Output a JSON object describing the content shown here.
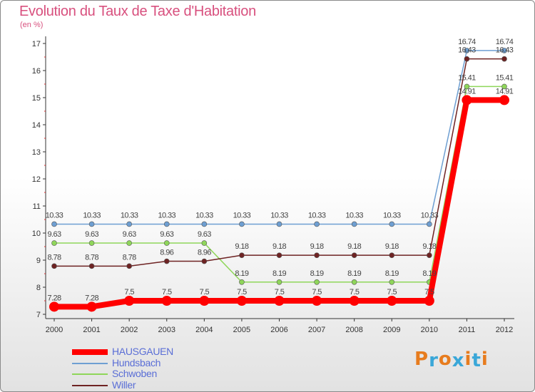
{
  "chart_data": {
    "type": "line",
    "title": "Evolution du Taux de Taxe d'Habitation",
    "subtitle": "(en %)",
    "xlabel": "",
    "ylabel": "",
    "categories": [
      "2000",
      "2001",
      "2002",
      "2003",
      "2004",
      "2005",
      "2006",
      "2007",
      "2008",
      "2009",
      "2010",
      "2011",
      "2012"
    ],
    "ylim": [
      7,
      17
    ],
    "yticks": [
      "7",
      "8",
      "9",
      "10",
      "11",
      "12",
      "13",
      "14",
      "15",
      "16",
      "17"
    ],
    "series": [
      {
        "name": "HAUSGAUEN",
        "color": "#ff0000",
        "values": [
          7.28,
          7.28,
          7.5,
          7.5,
          7.5,
          7.5,
          7.5,
          7.5,
          7.5,
          7.5,
          7.5,
          14.91,
          14.91
        ],
        "labels": [
          "7.28",
          "7.28",
          "7.5",
          "7.5",
          "7.5",
          "7.5",
          "7.5",
          "7.5",
          "7.5",
          "7.5",
          "7.5",
          "14.91",
          "14.91"
        ]
      },
      {
        "name": "Hundsbach",
        "color": "#6e9fd2",
        "values": [
          10.33,
          10.33,
          10.33,
          10.33,
          10.33,
          10.33,
          10.33,
          10.33,
          10.33,
          10.33,
          10.33,
          16.74,
          16.74
        ],
        "labels": [
          "10.33",
          "10.33",
          "10.33",
          "10.33",
          "10.33",
          "10.33",
          "10.33",
          "10.33",
          "10.33",
          "10.33",
          "10.33",
          "16.74",
          "16.74"
        ]
      },
      {
        "name": "Schwoben",
        "color": "#8fd65a",
        "values": [
          9.63,
          9.63,
          9.63,
          9.63,
          9.63,
          8.19,
          8.19,
          8.19,
          8.19,
          8.19,
          8.19,
          15.41,
          15.41
        ],
        "labels": [
          "9.63",
          "9.63",
          "9.63",
          "9.63",
          "9.63",
          "8.19",
          "8.19",
          "8.19",
          "8.19",
          "8.19",
          "8.19",
          "15.41",
          "15.41"
        ]
      },
      {
        "name": "Willer",
        "color": "#6e2323",
        "values": [
          8.78,
          8.78,
          8.78,
          8.96,
          8.96,
          9.18,
          9.18,
          9.18,
          9.18,
          9.18,
          9.18,
          16.43,
          16.43
        ],
        "labels": [
          "8.78",
          "8.78",
          "8.78",
          "8.96",
          "8.96",
          "9.18",
          "9.18",
          "9.18",
          "9.18",
          "9.18",
          "9.18",
          "16.43",
          "16.43"
        ]
      }
    ],
    "legend_position": "bottom-left",
    "grid": false
  },
  "logo": {
    "text": "Proxiti",
    "colors": [
      "#e77c1e",
      "#3aa7d8",
      "#e77c1e",
      "#3aa7d8",
      "#e77c1e",
      "#3aa7d8",
      "#e77c1e"
    ]
  }
}
